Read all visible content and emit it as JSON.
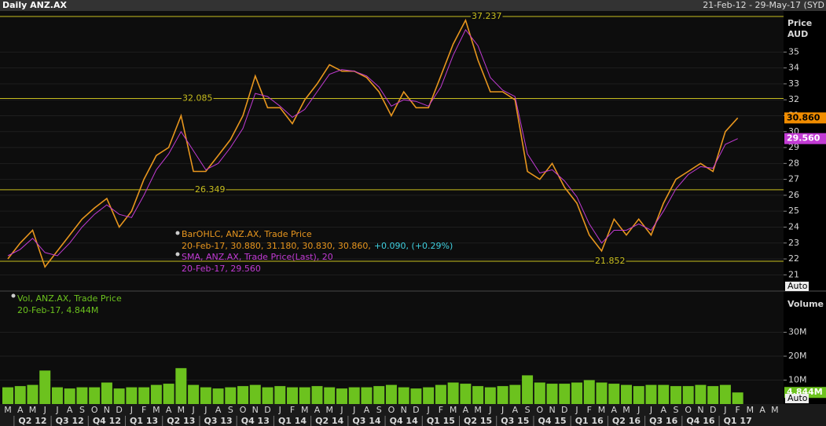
{
  "header": {
    "title": "Daily ANZ.AX",
    "range": "21-Feb-12 - 29-May-17 (SYD"
  },
  "chart_data": [
    {
      "type": "line",
      "axis_title": [
        "Price",
        "AUD"
      ],
      "scale_mode": "Auto",
      "categories": [
        "M",
        "A",
        "M",
        "J",
        "J",
        "A",
        "S",
        "O",
        "N",
        "D",
        "J",
        "F",
        "M",
        "A",
        "M",
        "J",
        "J",
        "A",
        "S",
        "O",
        "N",
        "D",
        "J",
        "F",
        "M",
        "A",
        "M",
        "J",
        "J",
        "A",
        "S",
        "O",
        "N",
        "D",
        "J",
        "F",
        "M",
        "A",
        "M",
        "J",
        "J",
        "A",
        "S",
        "O",
        "N",
        "D",
        "J",
        "F",
        "M",
        "A",
        "M",
        "J",
        "J",
        "A",
        "S",
        "O",
        "N",
        "D",
        "J",
        "F",
        "M",
        "A",
        "M"
      ],
      "quarters": [
        "Q2 12",
        "Q3 12",
        "Q4 12",
        "Q1 13",
        "Q2 13",
        "Q3 13",
        "Q4 13",
        "Q1 14",
        "Q2 14",
        "Q3 14",
        "Q4 14",
        "Q1 15",
        "Q2 15",
        "Q3 15",
        "Q4 15",
        "Q1 16",
        "Q2 16",
        "Q3 16",
        "Q4 16",
        "Q1 17"
      ],
      "series": [
        {
          "name": "BarOHLC, ANZ.AX, Trade Price",
          "detail": "20-Feb-17, 30.880, 31.180, 30.830, 30.860,",
          "change": "+0.090, (+0.29%)",
          "last": "30.860",
          "color": "#e8961e",
          "values": [
            22,
            23,
            23.8,
            21.5,
            22.5,
            23.5,
            24.5,
            25.2,
            25.8,
            24,
            25,
            27,
            28.5,
            29,
            31,
            27.5,
            27.5,
            28.5,
            29.5,
            31,
            33.5,
            31.5,
            31.5,
            30.5,
            32,
            33,
            34.2,
            33.8,
            33.8,
            33.4,
            32.5,
            31,
            32.5,
            31.5,
            31.5,
            33.5,
            35.5,
            37,
            34.5,
            32.5,
            32.5,
            32,
            27.5,
            27,
            28,
            26.5,
            25.5,
            23.5,
            22.5,
            24.5,
            23.5,
            24.5,
            23.5,
            25.5,
            27,
            27.5,
            28,
            27.5,
            30,
            30.86,
            null,
            null,
            null
          ]
        },
        {
          "name": "SMA, ANZ.AX, Trade Price(Last),  20",
          "detail": "20-Feb-17, 29.560",
          "last": "29.560",
          "color": "#c23bd4",
          "values": [
            22.2,
            22.6,
            23.3,
            22.4,
            22.2,
            23,
            24,
            24.8,
            25.4,
            24.8,
            24.6,
            26,
            27.6,
            28.6,
            30,
            28.8,
            27.6,
            28,
            29,
            30.2,
            32.4,
            32.2,
            31.6,
            30.9,
            31.4,
            32.5,
            33.6,
            33.9,
            33.8,
            33.5,
            32.8,
            31.6,
            32,
            31.9,
            31.6,
            32.8,
            34.8,
            36.4,
            35.4,
            33.4,
            32.6,
            32.2,
            28.6,
            27.4,
            27.6,
            26.9,
            25.9,
            24.2,
            23,
            23.8,
            23.8,
            24.2,
            23.8,
            25,
            26.4,
            27.3,
            27.8,
            27.7,
            29.2,
            29.56,
            null,
            null,
            null
          ]
        }
      ],
      "levels": [
        37.237,
        32.085,
        26.349,
        21.852
      ],
      "level_color": "#c8be1e",
      "ylim": [
        20.03,
        37.58
      ],
      "yticks": [
        21,
        22,
        23,
        24,
        25,
        26,
        27,
        28,
        29,
        30,
        31,
        32,
        33,
        34,
        35
      ],
      "grid": true
    },
    {
      "type": "bar",
      "axis_title": "Volume",
      "scale_mode": "Auto",
      "series": [
        {
          "name": "Vol, ANZ.AX, Trade Price",
          "detail": "20-Feb-17, 4.844M",
          "last": "4.844M",
          "color": "#6cc21e",
          "values": [
            7,
            7.5,
            8,
            14,
            7,
            6.5,
            7,
            7,
            9,
            6.5,
            7,
            7,
            8,
            8.5,
            15,
            8,
            7,
            6.5,
            7,
            7.5,
            8,
            7,
            7.5,
            7,
            7,
            7.5,
            7,
            6.5,
            7,
            7,
            7.5,
            8,
            7,
            6.5,
            7,
            8,
            9,
            8.5,
            7.5,
            7,
            7.5,
            8,
            12,
            9,
            8.5,
            8.5,
            9,
            10,
            9,
            8.5,
            8,
            7.5,
            8,
            8,
            7.5,
            7.5,
            8,
            7.5,
            8,
            4.844,
            null,
            null,
            null
          ]
        }
      ],
      "ylim": [
        0,
        46.9
      ],
      "yticks": [
        {
          "value": 10,
          "label": "10M"
        },
        {
          "value": 20,
          "label": "20M"
        },
        {
          "value": 30,
          "label": "30M"
        }
      ],
      "grid": true
    }
  ]
}
